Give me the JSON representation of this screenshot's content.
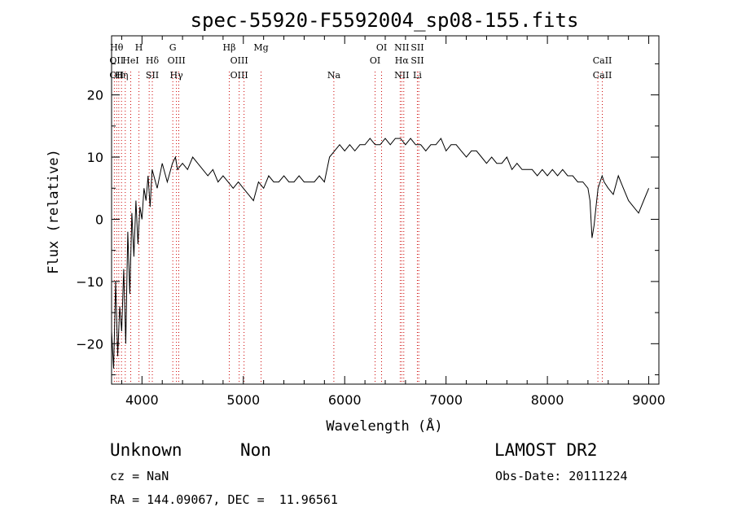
{
  "chart_data": {
    "type": "line",
    "title": "spec-55920-F5592004_sp08-155.fits",
    "xlabel": "Wavelength (Å)",
    "ylabel": "Flux (relative)",
    "xlim": [
      3700,
      9100
    ],
    "ylim": [
      -26.5,
      29.5
    ],
    "xticks": [
      4000,
      5000,
      6000,
      7000,
      8000,
      9000
    ],
    "yticks": [
      -20,
      -10,
      0,
      10,
      20
    ],
    "grid": false,
    "series": [
      {
        "x": [
          3700,
          3720,
          3740,
          3760,
          3780,
          3800,
          3820,
          3840,
          3860,
          3880,
          3900,
          3920,
          3940,
          3960,
          3980,
          4000,
          4020,
          4040,
          4060,
          4080,
          4100,
          4150,
          4200,
          4250,
          4300,
          4330,
          4350,
          4400,
          4450,
          4500,
          4550,
          4600,
          4650,
          4700,
          4750,
          4800,
          4850,
          4900,
          4950,
          5000,
          5050,
          5100,
          5150,
          5200,
          5250,
          5300,
          5350,
          5400,
          5450,
          5500,
          5550,
          5600,
          5650,
          5700,
          5750,
          5800,
          5850,
          5900,
          5950,
          6000,
          6050,
          6100,
          6150,
          6200,
          6250,
          6300,
          6350,
          6400,
          6450,
          6500,
          6550,
          6600,
          6650,
          6700,
          6750,
          6800,
          6850,
          6900,
          6950,
          7000,
          7050,
          7100,
          7150,
          7200,
          7250,
          7300,
          7350,
          7400,
          7450,
          7500,
          7550,
          7600,
          7650,
          7700,
          7750,
          7800,
          7850,
          7900,
          7950,
          8000,
          8050,
          8100,
          8150,
          8200,
          8250,
          8300,
          8350,
          8400,
          8420,
          8440,
          8460,
          8480,
          8500,
          8520,
          8540,
          8560,
          8600,
          8650,
          8700,
          8750,
          8800,
          8850,
          8900,
          8950,
          9000
        ],
        "y": [
          -18,
          -24,
          -10,
          -22,
          -14,
          -18,
          -8,
          -20,
          -2,
          -12,
          1,
          -6,
          3,
          -4,
          2,
          0,
          5,
          3,
          7,
          2,
          8,
          5,
          9,
          6,
          9,
          10,
          8,
          9,
          8,
          10,
          9,
          8,
          7,
          8,
          6,
          7,
          6,
          5,
          6,
          5,
          4,
          3,
          6,
          5,
          7,
          6,
          6,
          7,
          6,
          6,
          7,
          6,
          6,
          6,
          7,
          6,
          10,
          11,
          12,
          11,
          12,
          11,
          12,
          12,
          13,
          12,
          12,
          13,
          12,
          13,
          13,
          12,
          13,
          12,
          12,
          11,
          12,
          12,
          13,
          11,
          12,
          12,
          11,
          10,
          11,
          11,
          10,
          9,
          10,
          9,
          9,
          10,
          8,
          9,
          8,
          8,
          8,
          7,
          8,
          7,
          8,
          7,
          8,
          7,
          7,
          6,
          6,
          5,
          3,
          -3,
          -1,
          2,
          5,
          6,
          7,
          6,
          5,
          4,
          7,
          5,
          3,
          2,
          1,
          3,
          5
        ]
      }
    ],
    "line_labels": [
      {
        "x": 3750,
        "top": [
          "Hθ",
          "OII",
          "OII"
        ],
        "bottom": []
      },
      {
        "x": 3800,
        "top": [
          "",
          "",
          "Hη"
        ],
        "bottom": []
      },
      {
        "x": 3889,
        "top": [
          "",
          "HeI",
          ""
        ],
        "bottom": []
      },
      {
        "x": 3970,
        "top": [
          "H",
          "",
          ""
        ],
        "bottom": []
      },
      {
        "x": 4102,
        "top": [
          "",
          "Hδ",
          "SII"
        ],
        "bottom": []
      },
      {
        "x": 4304,
        "top": [
          "G",
          "",
          ""
        ],
        "bottom": []
      },
      {
        "x": 4340,
        "top": [
          "",
          "OIII",
          "Hγ"
        ],
        "bottom": []
      },
      {
        "x": 4861,
        "top": [
          "Hβ",
          "",
          ""
        ],
        "bottom": []
      },
      {
        "x": 4959,
        "top": [
          "",
          "OIII",
          "OIII"
        ],
        "bottom": []
      },
      {
        "x": 5175,
        "top": [
          "Mg",
          "",
          ""
        ],
        "bottom": []
      },
      {
        "x": 5893,
        "top": [
          "",
          "",
          "Na"
        ],
        "bottom": []
      },
      {
        "x": 6300,
        "top": [
          "",
          "OI",
          ""
        ],
        "bottom": []
      },
      {
        "x": 6364,
        "top": [
          "OI",
          "",
          ""
        ],
        "bottom": []
      },
      {
        "x": 6563,
        "top": [
          "NII",
          "Hα",
          "NII"
        ],
        "bottom": []
      },
      {
        "x": 6717,
        "top": [
          "SII",
          "SII",
          "Li"
        ],
        "bottom": []
      },
      {
        "x": 8542,
        "top": [
          "",
          "CaII",
          "CaII"
        ],
        "bottom": []
      }
    ],
    "line_markers": [
      3727,
      3750,
      3771,
      3798,
      3835,
      3889,
      3970,
      4071,
      4102,
      4304,
      4340,
      4363,
      4861,
      4959,
      5007,
      5175,
      5893,
      6300,
      6364,
      6548,
      6563,
      6583,
      6717,
      6731,
      8498,
      8542
    ]
  },
  "info": {
    "class": "Unknown",
    "subclass": "Non",
    "survey": "LAMOST DR2",
    "cz": "cz = NaN",
    "obs_date": "Obs-Date: 20111224",
    "radec": "RA = 144.09067, DEC =  11.96561"
  }
}
